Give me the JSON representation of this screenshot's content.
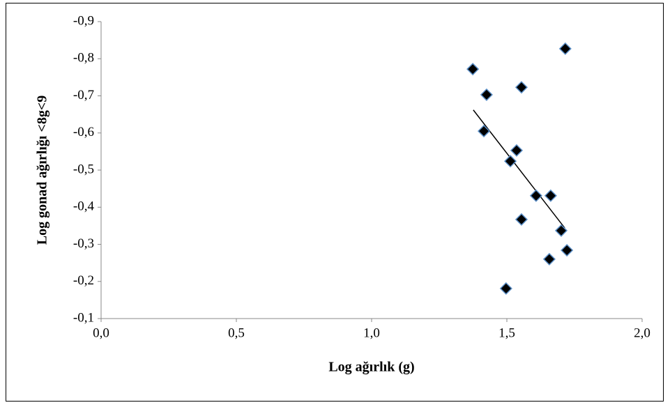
{
  "chart_data": {
    "type": "scatter",
    "x_label": "Log ağırlık (g)",
    "y_label": "Log gonad ağırlığı <8g<9",
    "xlim": [
      0,
      2
    ],
    "ylim": [
      -0.1,
      -0.9
    ],
    "xticks": [
      {
        "value": 0,
        "label": "0,0"
      },
      {
        "value": 0.5,
        "label": "0,5"
      },
      {
        "value": 1,
        "label": "1,0"
      },
      {
        "value": 1.5,
        "label": "1,5"
      },
      {
        "value": 2,
        "label": "2,0"
      }
    ],
    "yticks": [
      {
        "value": -0.1,
        "label": "-0,1"
      },
      {
        "value": -0.2,
        "label": "-0,2"
      },
      {
        "value": -0.3,
        "label": "-0,3"
      },
      {
        "value": -0.4,
        "label": "-0,4"
      },
      {
        "value": -0.5,
        "label": "-0,5"
      },
      {
        "value": -0.6,
        "label": "-0,6"
      },
      {
        "value": -0.7,
        "label": "-0,7"
      },
      {
        "value": -0.8,
        "label": "-0,8"
      },
      {
        "value": -0.9,
        "label": "-0,9"
      }
    ],
    "x": [
      1.374,
      1.425,
      1.554,
      1.716,
      1.415,
      1.536,
      1.513,
      1.608,
      1.662,
      1.554,
      1.701,
      1.722,
      1.657,
      1.497
    ],
    "values": [
      -0.772,
      -0.703,
      -0.723,
      -0.827,
      -0.605,
      -0.553,
      -0.524,
      -0.431,
      -0.431,
      -0.367,
      -0.337,
      -0.284,
      -0.26,
      -0.181
    ],
    "color": "#000000",
    "edge_color": "#5b8fc7",
    "trendline": {
      "x": [
        1.376,
        1.714
      ],
      "values": [
        -0.662,
        -0.344
      ]
    },
    "grid": false
  }
}
